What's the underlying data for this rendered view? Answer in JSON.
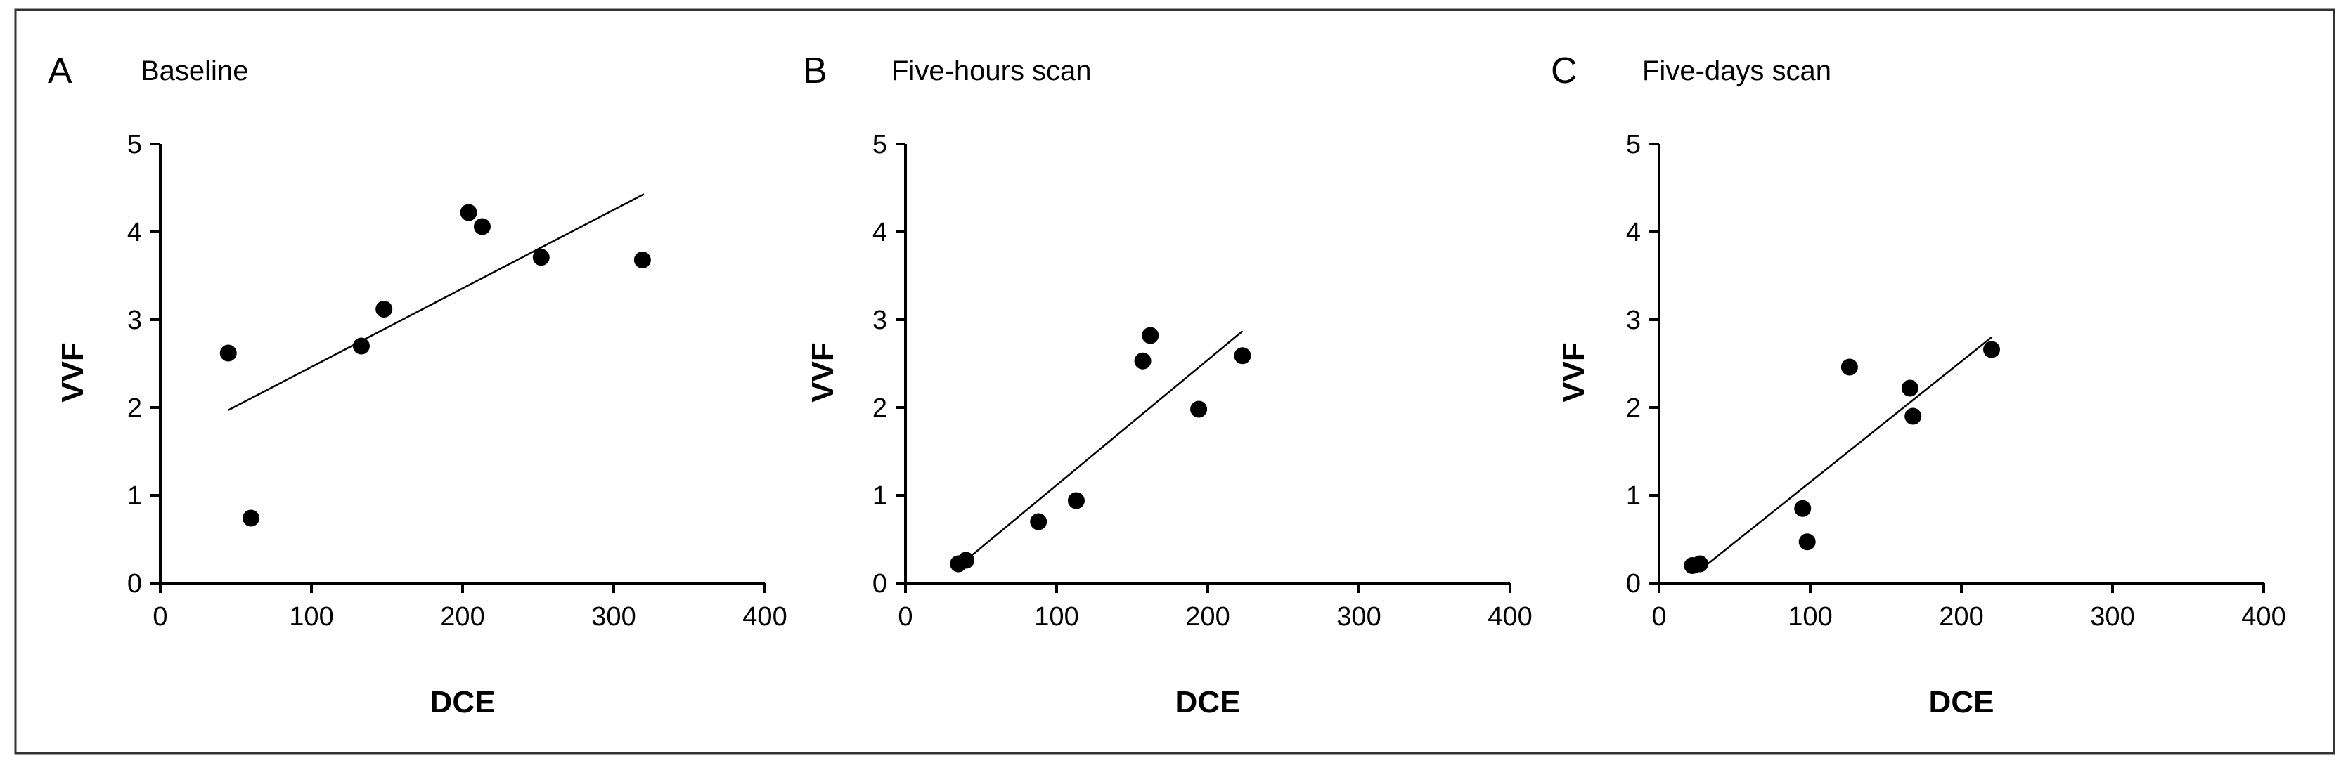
{
  "chart_data": [
    {
      "type": "scatter",
      "panel_label": "A",
      "title": "Baseline",
      "xlabel": "DCE",
      "ylabel": "VVF",
      "xlim": [
        0,
        400
      ],
      "ylim": [
        0,
        5
      ],
      "x_ticks": [
        "0",
        "100",
        "200",
        "300",
        "400"
      ],
      "y_ticks": [
        "0",
        "1",
        "2",
        "3",
        "4",
        "5"
      ],
      "points": [
        {
          "x": 45,
          "y": 2.62
        },
        {
          "x": 60,
          "y": 0.74
        },
        {
          "x": 133,
          "y": 2.7
        },
        {
          "x": 148,
          "y": 3.12
        },
        {
          "x": 204,
          "y": 4.22
        },
        {
          "x": 213,
          "y": 4.06
        },
        {
          "x": 252,
          "y": 3.71
        },
        {
          "x": 319,
          "y": 3.68
        }
      ],
      "fit_line": {
        "x": [
          45,
          320
        ],
        "y": [
          1.97,
          4.43
        ]
      },
      "grid": false,
      "legend": "none"
    },
    {
      "type": "scatter",
      "panel_label": "B",
      "title": "Five-hours scan",
      "xlabel": "DCE",
      "ylabel": "VVF",
      "xlim": [
        0,
        400
      ],
      "ylim": [
        0,
        5
      ],
      "x_ticks": [
        "0",
        "100",
        "200",
        "300",
        "400"
      ],
      "y_ticks": [
        "0",
        "1",
        "2",
        "3",
        "4",
        "5"
      ],
      "points": [
        {
          "x": 35,
          "y": 0.22
        },
        {
          "x": 40,
          "y": 0.26
        },
        {
          "x": 88,
          "y": 0.7
        },
        {
          "x": 113,
          "y": 0.94
        },
        {
          "x": 157,
          "y": 2.53
        },
        {
          "x": 162,
          "y": 2.82
        },
        {
          "x": 194,
          "y": 1.98
        },
        {
          "x": 223,
          "y": 2.59
        }
      ],
      "fit_line": {
        "x": [
          35,
          223
        ],
        "y": [
          0.19,
          2.87
        ]
      },
      "grid": false,
      "legend": "none"
    },
    {
      "type": "scatter",
      "panel_label": "C",
      "title": "Five-days scan",
      "xlabel": "DCE",
      "ylabel": "VVF",
      "xlim": [
        0,
        400
      ],
      "ylim": [
        0,
        5
      ],
      "x_ticks": [
        "0",
        "100",
        "200",
        "300",
        "400"
      ],
      "y_ticks": [
        "0",
        "1",
        "2",
        "3",
        "4",
        "5"
      ],
      "points": [
        {
          "x": 22,
          "y": 0.2
        },
        {
          "x": 27,
          "y": 0.22
        },
        {
          "x": 95,
          "y": 0.85
        },
        {
          "x": 98,
          "y": 0.47
        },
        {
          "x": 126,
          "y": 2.46
        },
        {
          "x": 166,
          "y": 2.22
        },
        {
          "x": 168,
          "y": 1.9
        },
        {
          "x": 220,
          "y": 2.66
        }
      ],
      "fit_line": {
        "x": [
          25,
          220
        ],
        "y": [
          0.12,
          2.8
        ]
      },
      "grid": false,
      "legend": "none"
    }
  ]
}
